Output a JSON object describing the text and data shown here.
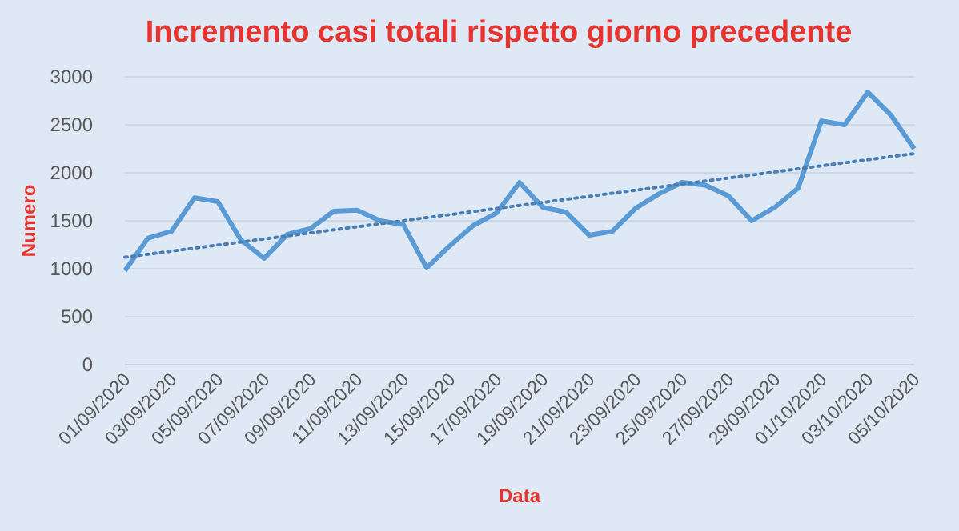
{
  "chart_data": {
    "type": "line",
    "title": "Incremento casi totali rispetto giorno precedente",
    "xlabel": "Data",
    "ylabel": "Numero",
    "x": [
      "2020-09-01",
      "2020-09-02",
      "2020-09-03",
      "2020-09-04",
      "2020-09-05",
      "2020-09-06",
      "2020-09-07",
      "2020-09-08",
      "2020-09-09",
      "2020-09-10",
      "2020-09-11",
      "2020-09-12",
      "2020-09-13",
      "2020-09-14",
      "2020-09-15",
      "2020-09-16",
      "2020-09-17",
      "2020-09-18",
      "2020-09-19",
      "2020-09-20",
      "2020-09-21",
      "2020-09-22",
      "2020-09-23",
      "2020-09-24",
      "2020-09-25",
      "2020-09-26",
      "2020-09-27",
      "2020-09-28",
      "2020-09-29",
      "2020-09-30",
      "2020-10-01",
      "2020-10-02",
      "2020-10-03",
      "2020-10-04",
      "2020-10-05"
    ],
    "series": [
      {
        "color": "#5b9bd5",
        "line_style": "solid",
        "values": [
          980,
          1320,
          1390,
          1740,
          1700,
          1300,
          1110,
          1360,
          1420,
          1600,
          1610,
          1500,
          1460,
          1010,
          1240,
          1450,
          1580,
          1900,
          1640,
          1590,
          1350,
          1390,
          1630,
          1780,
          1900,
          1870,
          1760,
          1500,
          1640,
          1840,
          2540,
          2500,
          2840,
          2600,
          2250
        ]
      },
      {
        "type": "line",
        "color": "#4a7fb5",
        "line_style": "dotted",
        "x": [
          "2020-09-01",
          "2020-10-05"
        ],
        "values": [
          1120,
          2200
        ]
      }
    ],
    "xlim": [
      "2020-09-01",
      "2020-10-05"
    ],
    "xticks": [
      {
        "value": "2020-09-01",
        "label": "01/09/2020"
      },
      {
        "value": "2020-09-03",
        "label": "03/09/2020"
      },
      {
        "value": "2020-09-05",
        "label": "05/09/2020"
      },
      {
        "value": "2020-09-07",
        "label": "07/09/2020"
      },
      {
        "value": "2020-09-09",
        "label": "09/09/2020"
      },
      {
        "value": "2020-09-11",
        "label": "11/09/2020"
      },
      {
        "value": "2020-09-13",
        "label": "13/09/2020"
      },
      {
        "value": "2020-09-15",
        "label": "15/09/2020"
      },
      {
        "value": "2020-09-17",
        "label": "17/09/2020"
      },
      {
        "value": "2020-09-19",
        "label": "19/09/2020"
      },
      {
        "value": "2020-09-21",
        "label": "21/09/2020"
      },
      {
        "value": "2020-09-23",
        "label": "23/09/2020"
      },
      {
        "value": "2020-09-25",
        "label": "25/09/2020"
      },
      {
        "value": "2020-09-27",
        "label": "27/09/2020"
      },
      {
        "value": "2020-09-29",
        "label": "29/09/2020"
      },
      {
        "value": "2020-10-01",
        "label": "01/10/2020"
      },
      {
        "value": "2020-10-03",
        "label": "03/10/2020"
      },
      {
        "value": "2020-10-05",
        "label": "05/10/2020"
      }
    ],
    "ylim": [
      0,
      3000
    ],
    "yticks": [
      0,
      500,
      1000,
      1500,
      2000,
      2500,
      3000
    ],
    "grid": "y",
    "marker": "none"
  }
}
